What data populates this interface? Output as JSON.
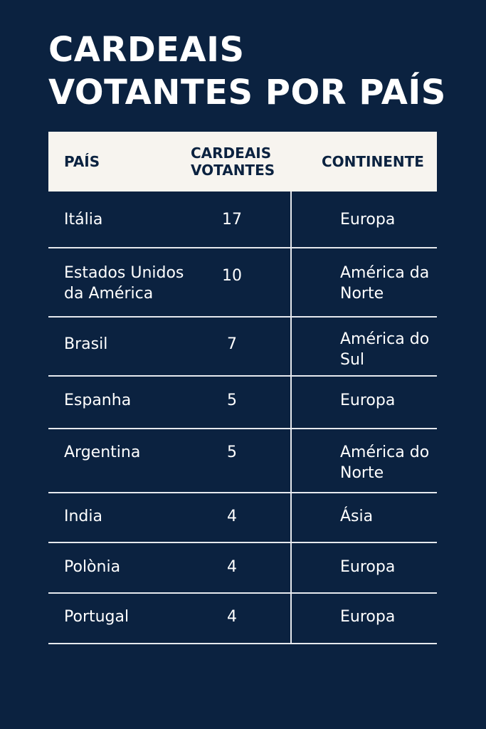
{
  "title": "CARDEAIS VOTANTES POR PAÍS",
  "table": {
    "headers": {
      "country": "PAÍS",
      "votes_line1": "CARDEAIS",
      "votes_line2": "VOTANTES",
      "continent": "CONTINENTE"
    },
    "rows": [
      {
        "country": "Itália",
        "votes": "17",
        "continent": "Europa"
      },
      {
        "country": "Estados Unidos da América",
        "votes": "10",
        "continent": "América da Norte"
      },
      {
        "country": "Brasil",
        "votes": "7",
        "continent": "América do Sul"
      },
      {
        "country": "Espanha",
        "votes": "5",
        "continent": "Europa"
      },
      {
        "country": "Argentina",
        "votes": "5",
        "continent": "América do Norte"
      },
      {
        "country": "India",
        "votes": "4",
        "continent": "Ásia"
      },
      {
        "country": "Polònia",
        "votes": "4",
        "continent": "Europa"
      },
      {
        "country": "Portugal",
        "votes": "4",
        "continent": "Europa"
      }
    ]
  },
  "colors": {
    "background": "#0b2240",
    "header_background": "#f7f4ef",
    "text": "#ffffff",
    "rule": "#e6e9ee"
  }
}
